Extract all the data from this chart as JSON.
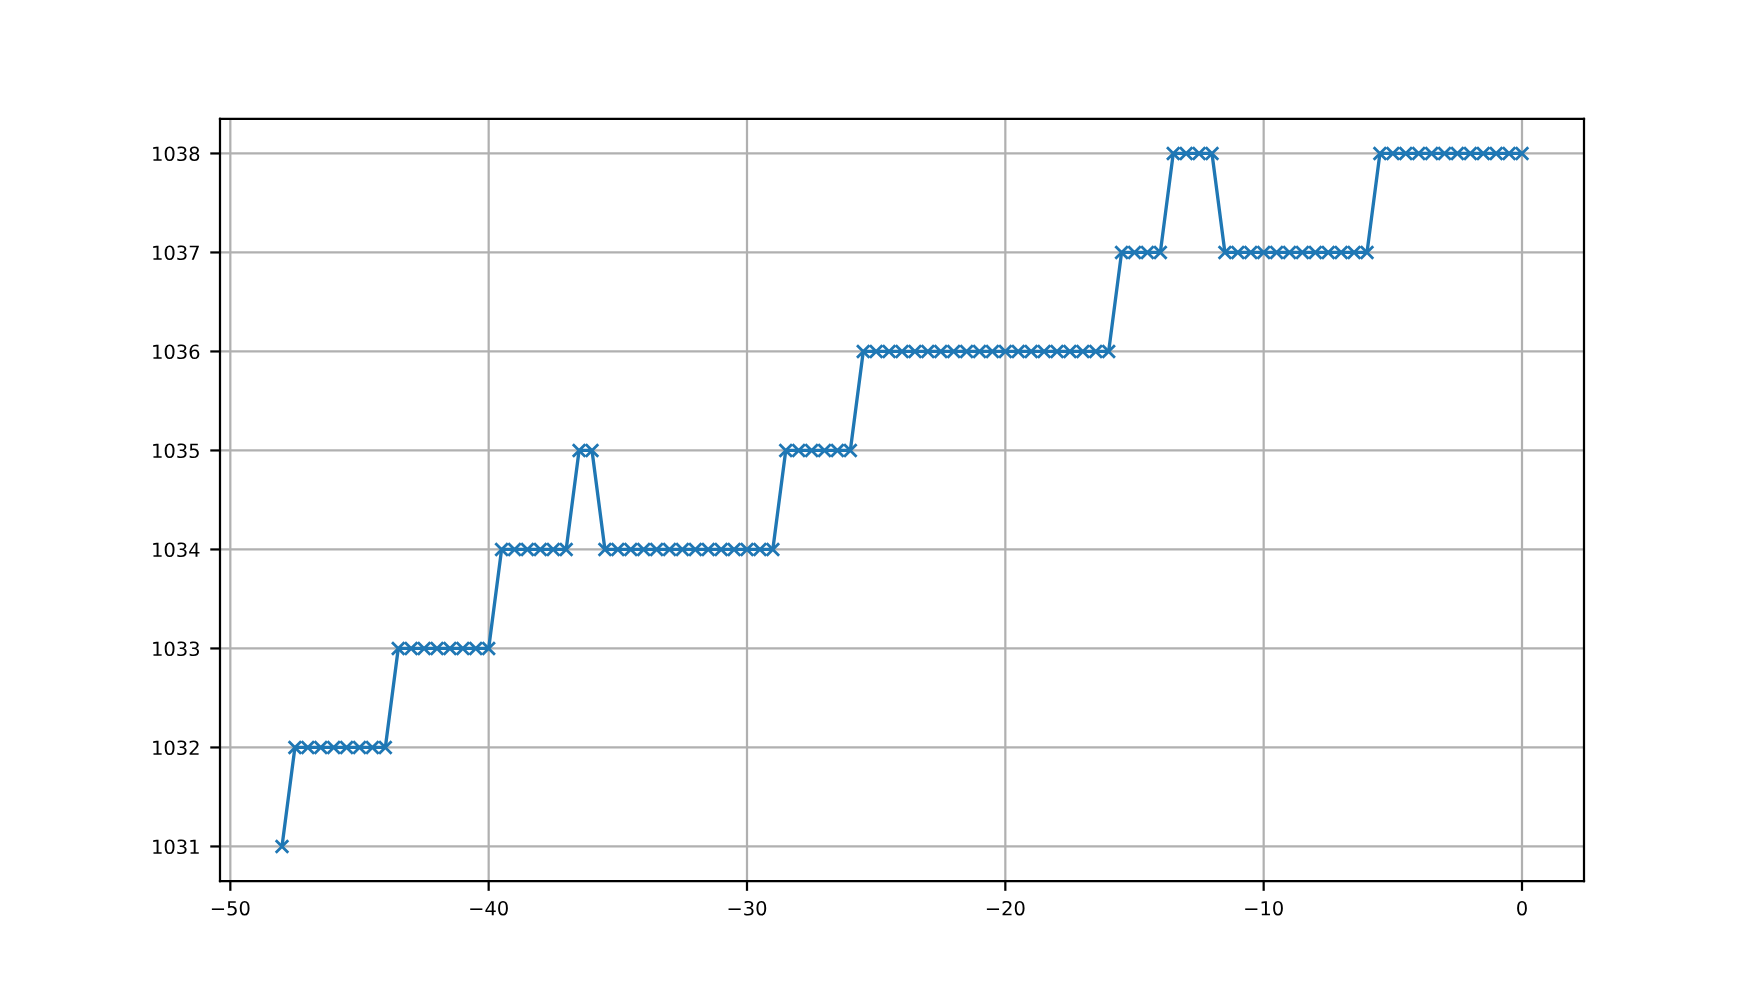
{
  "chart_data": {
    "type": "line",
    "x": [
      -48,
      -47.5,
      -47,
      -46.5,
      -46,
      -45.5,
      -45,
      -44.5,
      -44,
      -43.5,
      -43,
      -42.5,
      -42,
      -41.5,
      -41,
      -40.5,
      -40,
      -39.5,
      -39,
      -38.5,
      -38,
      -37.5,
      -37,
      -36.5,
      -36,
      -35.5,
      -35,
      -34.5,
      -34,
      -33.5,
      -33,
      -32.5,
      -32,
      -31.5,
      -31,
      -30.5,
      -30,
      -29.5,
      -29,
      -28.5,
      -28,
      -27.5,
      -27,
      -26.5,
      -26,
      -25.5,
      -25,
      -24.5,
      -24,
      -23.5,
      -23,
      -22.5,
      -22,
      -21.5,
      -21,
      -20.5,
      -20,
      -19.5,
      -19,
      -18.5,
      -18,
      -17.5,
      -17,
      -16.5,
      -16,
      -15.5,
      -15,
      -14.5,
      -14,
      -13.5,
      -13,
      -12.5,
      -12,
      -11.5,
      -11,
      -10.5,
      -10,
      -9.5,
      -9,
      -8.5,
      -8,
      -7.5,
      -7,
      -6.5,
      -6,
      -5.5,
      -5,
      -4.5,
      -4,
      -3.5,
      -3,
      -2.5,
      -2,
      -1.5,
      -1,
      -0.5,
      0
    ],
    "series": [
      {
        "color": "#1f77b4",
        "values": [
          1031,
          1032,
          1032,
          1032,
          1032,
          1032,
          1032,
          1032,
          1032,
          1033,
          1033,
          1033,
          1033,
          1033,
          1033,
          1033,
          1033,
          1034,
          1034,
          1034,
          1034,
          1034,
          1034,
          1035,
          1035,
          1034,
          1034,
          1034,
          1034,
          1034,
          1034,
          1034,
          1034,
          1034,
          1034,
          1034,
          1034,
          1034,
          1034,
          1035,
          1035,
          1035,
          1035,
          1035,
          1035,
          1036,
          1036,
          1036,
          1036,
          1036,
          1036,
          1036,
          1036,
          1036,
          1036,
          1036,
          1036,
          1036,
          1036,
          1036,
          1036,
          1036,
          1036,
          1036,
          1036,
          1037,
          1037,
          1037,
          1037,
          1038,
          1038,
          1038,
          1038,
          1037,
          1037,
          1037,
          1037,
          1037,
          1037,
          1037,
          1037,
          1037,
          1037,
          1037,
          1037,
          1038,
          1038,
          1038,
          1038,
          1038,
          1038,
          1038,
          1038,
          1038,
          1038,
          1038,
          1038
        ]
      }
    ],
    "xlim": [
      -50.4,
      2.4
    ],
    "xticks": [
      -50,
      -40,
      -30,
      -20,
      -10,
      0
    ],
    "ylim": [
      1030.65,
      1038.35
    ],
    "yticks": [
      1031,
      1032,
      1033,
      1034,
      1035,
      1036,
      1037,
      1038
    ],
    "grid": true,
    "marker": "cross",
    "line_style": "solid"
  }
}
